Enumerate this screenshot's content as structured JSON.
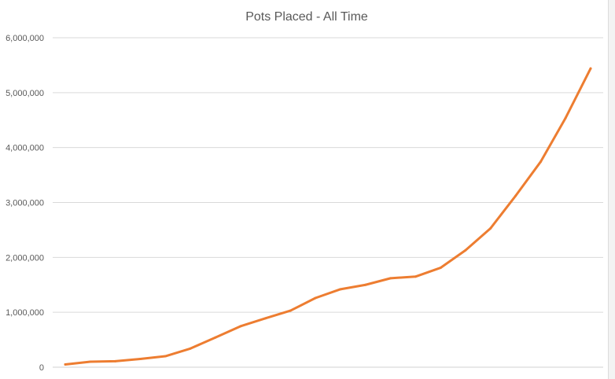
{
  "chart_data": {
    "type": "line",
    "title": "Pots Placed - All Time",
    "xlabel": "",
    "ylabel": "",
    "ylim": [
      0,
      6000000
    ],
    "yticks": [
      "0",
      "1,000,000",
      "2,000,000",
      "3,000,000",
      "4,000,000",
      "5,000,000",
      "6,000,000"
    ],
    "grid": true,
    "line_color": "#ED7D31",
    "series": [
      {
        "values": [
          50000,
          100000,
          110000,
          150000,
          200000,
          340000,
          540000,
          745000,
          890000,
          1030000,
          1260000,
          1420000,
          1500000,
          1620000,
          1650000,
          1810000,
          2130000,
          2530000,
          3120000,
          3740000,
          4540000,
          5440000
        ]
      }
    ]
  }
}
